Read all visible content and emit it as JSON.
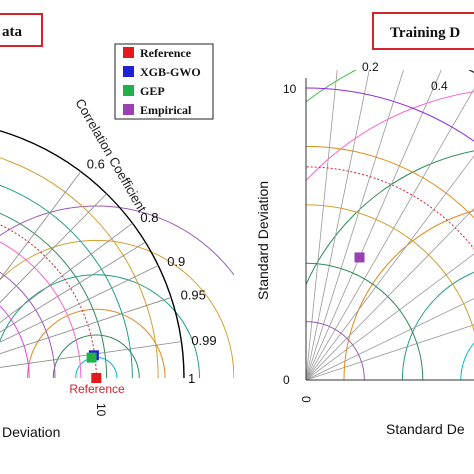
{
  "chart_data": [
    {
      "type": "scatter",
      "subtype": "taylor-diagram",
      "title": "ata",
      "xlabel": "Deviation",
      "arc_label": "Correlation Coefficient",
      "correlation_ticks": [
        "0.6",
        "0.8",
        "0.9",
        "0.95",
        "0.99",
        "1"
      ],
      "x_tick_labels": [
        "10"
      ],
      "reference_label": "Reference",
      "legend": {
        "placement": "top-right",
        "entries": [
          {
            "label": "Reference",
            "color": "#e31a1c"
          },
          {
            "label": "XGB-GWO",
            "color": "#1f1fd6"
          },
          {
            "label": "GEP",
            "color": "#22b04b"
          },
          {
            "label": "Empirical",
            "color": "#9b3fb5"
          }
        ]
      },
      "points": [
        {
          "series": "Reference",
          "std": 9.9,
          "corr": 1.0,
          "color": "#e31a1c"
        },
        {
          "series": "XGB-GWO",
          "std": 9.85,
          "corr": 0.991,
          "color": "#1f1fd6"
        },
        {
          "series": "GEP",
          "std": 9.7,
          "corr": 0.9925,
          "color": "#22b04b"
        }
      ]
    },
    {
      "type": "scatter",
      "subtype": "taylor-diagram",
      "title": "Training D",
      "xlabel": "Standard De",
      "ylabel": "Standard Deviation",
      "y_tick_labels": [
        "0",
        "10"
      ],
      "x_tick_labels": [
        "0"
      ],
      "correlation_ticks": [
        "0.2",
        "0.4"
      ],
      "points": [
        {
          "series": "Empirical",
          "std": 4.58,
          "corr": 0.4,
          "color": "#9b3fb5"
        }
      ]
    }
  ]
}
